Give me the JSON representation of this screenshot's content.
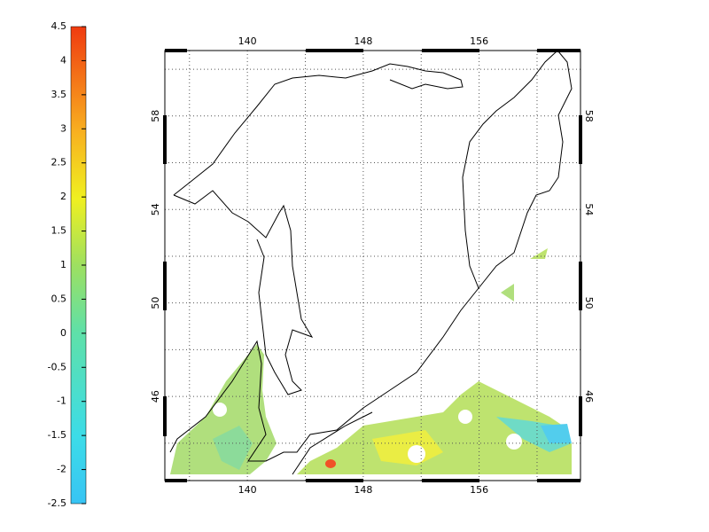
{
  "colorbar": {
    "lim": [
      -2.5,
      4.5
    ],
    "ticks": [
      -2.5,
      -2,
      -1.5,
      -1,
      -0.5,
      0,
      0.5,
      1,
      1.5,
      2,
      2.5,
      3,
      3.5,
      4,
      4.5
    ]
  },
  "map": {
    "xlim": [
      134.3,
      163
    ],
    "ylim": [
      42.4,
      60.8
    ],
    "xticks": [
      140,
      148,
      156
    ],
    "yticks": [
      46,
      50,
      54,
      58
    ],
    "xgrid": [
      136,
      140,
      144,
      148,
      152,
      156,
      160
    ],
    "ygrid": [
      44,
      46,
      48,
      50,
      52,
      54,
      56,
      58,
      60
    ]
  }
}
